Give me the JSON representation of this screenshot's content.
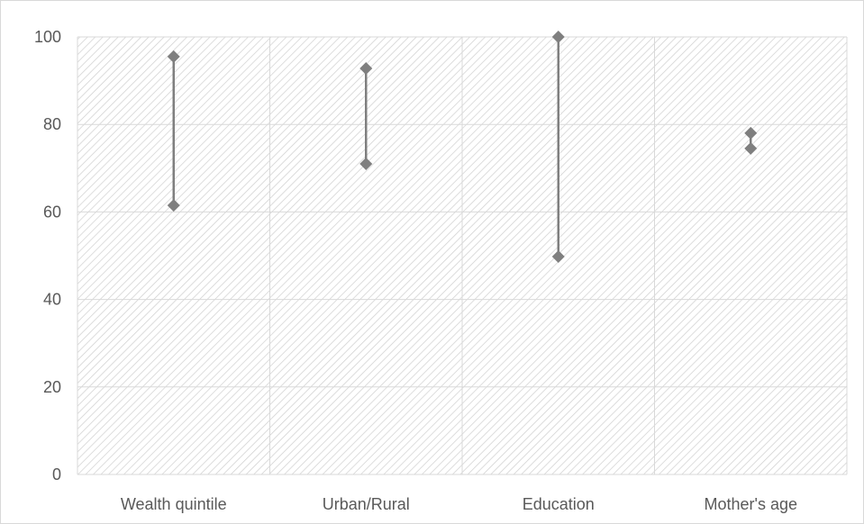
{
  "chart_data": {
    "type": "high-low",
    "categories": [
      "Wealth quintile",
      "Urban/Rural",
      "Education",
      "Mother's age"
    ],
    "series": [
      {
        "values": [
          95.5,
          92.8,
          100,
          78
        ]
      },
      {
        "values": [
          61.5,
          71,
          49.8,
          74.5
        ]
      }
    ],
    "y_ticks": [
      "0",
      "20",
      "40",
      "60",
      "80",
      "100"
    ],
    "ylim": [
      0,
      100
    ],
    "grid": true,
    "legend": "none",
    "colors": {
      "marker": "#7f7f7f",
      "line": "#7f7f7f",
      "grid": "#d9d9d9",
      "hatch": "#d0d0d0",
      "text": "#595959"
    }
  }
}
